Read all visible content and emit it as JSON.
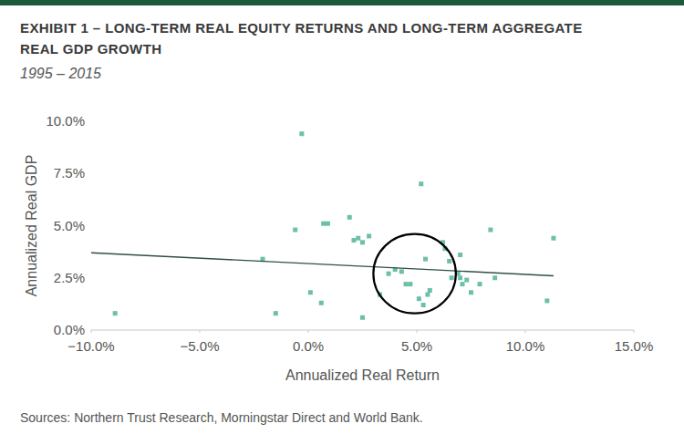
{
  "chart_data": {
    "type": "scatter",
    "title": "EXHIBIT 1 – LONG-TERM REAL EQUITY RETURNS AND LONG-TERM AGGREGATE\nREAL GDP GROWTH",
    "subtitle": "1995 – 2015",
    "x_label": "Annualized Real Return",
    "y_label": "Annualized Real GDP",
    "source": "Sources: Northern Trust Research, Morningstar Direct and World Bank.",
    "xlim": [
      -10,
      15
    ],
    "ylim": [
      0,
      10
    ],
    "xticks": [
      {
        "value": -10,
        "label": "−10.0%"
      },
      {
        "value": -5,
        "label": "−5.0%"
      },
      {
        "value": 0,
        "label": "0.0%"
      },
      {
        "value": 5,
        "label": "5.0%"
      },
      {
        "value": 10,
        "label": "10.0%"
      },
      {
        "value": 15,
        "label": "15.0%"
      }
    ],
    "yticks": [
      {
        "value": 0,
        "label": "0.0%"
      },
      {
        "value": 2.5,
        "label": "2.5%"
      },
      {
        "value": 5,
        "label": "5.0%"
      },
      {
        "value": 7.5,
        "label": "7.5%"
      },
      {
        "value": 10,
        "label": "10.0%"
      }
    ],
    "grid": false,
    "series": [
      {
        "type": "scatter",
        "marker": "square",
        "color": "#6cbfa9",
        "x": [
          -8.9,
          -2.1,
          -1.5,
          -0.6,
          -0.3,
          0.1,
          0.6,
          0.7,
          0.9,
          1.9,
          2.1,
          2.3,
          2.5,
          2.5,
          2.8,
          3.3,
          3.7,
          4.0,
          4.3,
          4.5,
          4.7,
          5.2,
          5.1,
          5.3,
          5.4,
          5.6,
          5.5,
          6.2,
          6.3,
          6.5,
          6.6,
          6.9,
          7.0,
          7.0,
          7.1,
          7.3,
          7.5,
          7.9,
          8.4,
          8.6,
          11.0,
          11.3
        ],
        "values": [
          0.8,
          3.4,
          0.8,
          4.8,
          9.4,
          1.8,
          1.3,
          5.1,
          5.1,
          5.4,
          4.3,
          4.4,
          4.2,
          0.6,
          4.5,
          1.7,
          2.7,
          2.9,
          2.8,
          2.2,
          2.2,
          7.0,
          1.5,
          1.2,
          3.4,
          1.9,
          1.7,
          4.2,
          3.9,
          3.3,
          2.5,
          2.7,
          2.5,
          3.6,
          2.2,
          2.4,
          1.8,
          2.2,
          4.8,
          2.5,
          1.4,
          4.4
        ]
      },
      {
        "type": "line",
        "line_style": "solid",
        "color": "#2f4f45",
        "x": [
          -10,
          11.3
        ],
        "values": [
          3.7,
          2.6
        ]
      }
    ],
    "annotations": [
      {
        "shape": "circle",
        "color": "#000000",
        "x": 4.9,
        "y": 2.7,
        "rx": 1.9,
        "ry": 1.9
      }
    ]
  }
}
